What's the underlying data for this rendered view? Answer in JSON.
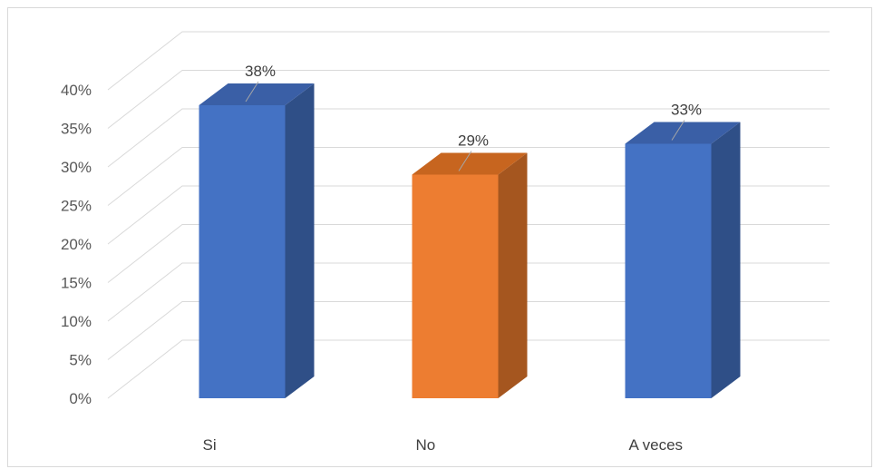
{
  "chart_data": {
    "type": "bar",
    "title": "",
    "xlabel": "",
    "ylabel": "",
    "categories": [
      "Si",
      "No",
      "A veces"
    ],
    "values": [
      38,
      29,
      33
    ],
    "data_labels": [
      "38%",
      "29%",
      "33%"
    ],
    "ylim": [
      0,
      40
    ],
    "y_ticks": [
      "0%",
      "5%",
      "10%",
      "15%",
      "20%",
      "25%",
      "30%",
      "35%",
      "40%"
    ],
    "grid": true,
    "three_d": true,
    "legend": "none",
    "colors": {
      "bar_front": [
        "#4472c4",
        "#ed7d31",
        "#4472c4"
      ],
      "bar_side": [
        "#2f4f87",
        "#a5561f",
        "#2f4f87"
      ],
      "bar_top": [
        "#3a5fa6",
        "#c7651f",
        "#3a5fa6"
      ],
      "grid": "#d9d9d9",
      "text": "#595959"
    }
  }
}
